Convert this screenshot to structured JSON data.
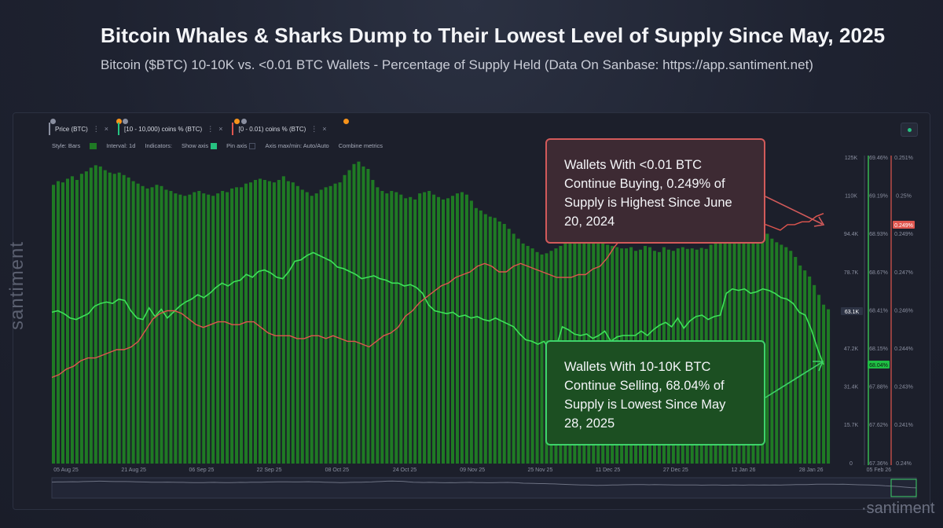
{
  "title": "Bitcoin Whales & Sharks Dump to Their Lowest Level of Supply Since May, 2025",
  "subtitle": "Bitcoin ($BTC) 10-10K vs. <0.01 BTC Wallets - Percentage of Supply Held (Data On Sanbase: https://app.santiment.net)",
  "brand": "santiment",
  "brand_right": "·santiment",
  "metric_tabs": [
    {
      "label": "Price (BTC)",
      "color": "#8a8fa0"
    },
    {
      "label": "[10 - 10,000) coins % (BTC)",
      "color": "#26c281"
    },
    {
      "label": "[0 - 0.01) coins % (BTC)",
      "color": "#e0564f"
    }
  ],
  "toolbar": {
    "style": "Style: Bars",
    "interval": "Interval: 1d",
    "indicators": "Indicators:",
    "show_axis": "Show axis",
    "pin_axis": "Pin axis",
    "axis_minmax": "Axis max/min: Auto/Auto",
    "combine": "Combine metrics"
  },
  "callouts": {
    "red": "Wallets With <0.01 BTC Continue Buying, 0.249% of Supply is Highest Since June 20, 2024",
    "green": "Wallets With 10-10K BTC Continue Selling, 68.04% of Supply is Lowest Since May 28, 2025"
  },
  "colors": {
    "bars": "#1f7a24",
    "whales_line": "#3ee05a",
    "small_line": "#e0564f",
    "accent_red": "#d25a5a",
    "accent_green": "#3ed26a"
  },
  "chart_data": {
    "type": "bar",
    "title": "Bitcoin Whales & Sharks Dump to Their Lowest Level of Supply Since May, 2025",
    "x_ticks": [
      "05 Aug 25",
      "21 Aug 25",
      "06 Sep 25",
      "22 Sep 25",
      "08 Oct 25",
      "24 Oct 25",
      "09 Nov 25",
      "25 Nov 25",
      "11 Dec 25",
      "27 Dec 25",
      "12 Jan 26",
      "28 Jan 26",
      "05 Feb 26"
    ],
    "axes": {
      "price": {
        "ticks": [
          "125K",
          "110K",
          "94.4K",
          "78.7K",
          "63.1K",
          "47.2K",
          "31.4K",
          "15.7K",
          "0"
        ],
        "range": [
          0,
          125000
        ],
        "current_label": "63.1K"
      },
      "whales_pct": {
        "ticks": [
          "69.46%",
          "69.19%",
          "68.93%",
          "68.67%",
          "68.41%",
          "68.15%",
          "67.88%",
          "67.62%",
          "67.36%"
        ],
        "range": [
          67.36,
          69.46
        ],
        "current_label": "68.04%"
      },
      "small_pct": {
        "ticks": [
          "0.251%",
          "0.25%",
          "0.249%",
          "0.247%",
          "0.246%",
          "0.244%",
          "0.243%",
          "0.241%",
          "0.24%"
        ],
        "range": [
          0.24,
          0.251
        ],
        "current_label": "0.249%"
      }
    },
    "series": [
      {
        "name": "Price (BTC)",
        "style": "bars",
        "unit": "USD",
        "values": [
          114000,
          115500,
          115000,
          116500,
          117500,
          116000,
          118500,
          119500,
          121000,
          122000,
          121500,
          120000,
          119000,
          118500,
          119000,
          118000,
          117000,
          115500,
          114500,
          113500,
          112500,
          113000,
          114000,
          113500,
          112000,
          111500,
          110500,
          110000,
          109500,
          110000,
          111000,
          111500,
          110500,
          110000,
          109500,
          110500,
          111500,
          111000,
          112500,
          113000,
          113000,
          114500,
          115000,
          116000,
          116500,
          116000,
          115500,
          115000,
          116000,
          117500,
          115500,
          115000,
          113500,
          112000,
          111000,
          109500,
          110500,
          112000,
          113000,
          113500,
          114500,
          115000,
          118000,
          120000,
          122500,
          123500,
          121500,
          120500,
          116000,
          113000,
          111500,
          110500,
          111500,
          111000,
          110000,
          108500,
          109000,
          108000,
          110500,
          111000,
          111500,
          110000,
          109000,
          108000,
          108500,
          109500,
          110500,
          111000,
          110000,
          107500,
          104500,
          103500,
          102000,
          101000,
          100500,
          99000,
          98000,
          96000,
          94000,
          92000,
          90000,
          89000,
          88000,
          86500,
          85500,
          86000,
          87000,
          88000,
          89000,
          90500,
          91000,
          92000,
          92500,
          91500,
          90500,
          92000,
          91000,
          90000,
          89500,
          89000,
          88500,
          88000,
          88000,
          88500,
          87000,
          87500,
          89000,
          88500,
          87000,
          86500,
          88500,
          87500,
          87000,
          88000,
          88500,
          87800,
          88000,
          87500,
          88200,
          87800,
          89500,
          90500,
          91500,
          91500,
          92500,
          94000,
          95000,
          96000,
          95500,
          95000,
          94500,
          95000,
          94000,
          92000,
          90500,
          89500,
          88500,
          87000,
          84500,
          81000,
          79000,
          76500,
          73000,
          69000,
          65000,
          63100
        ]
      },
      {
        "name": "[10 - 10,000) coins % (BTC)",
        "style": "line",
        "unit": "%",
        "values": [
          68.4,
          68.41,
          68.39,
          68.36,
          68.35,
          68.37,
          68.39,
          68.44,
          68.46,
          68.47,
          68.46,
          68.49,
          68.48,
          68.41,
          68.36,
          68.35,
          68.43,
          68.37,
          68.42,
          68.36,
          68.4,
          68.44,
          68.47,
          68.49,
          68.52,
          68.5,
          68.53,
          68.57,
          68.6,
          68.58,
          68.61,
          68.62,
          68.66,
          68.64,
          68.68,
          68.69,
          68.67,
          68.64,
          68.63,
          68.68,
          68.75,
          68.76,
          68.79,
          68.81,
          68.79,
          68.77,
          68.75,
          68.71,
          68.7,
          68.68,
          68.66,
          68.63,
          68.64,
          68.65,
          68.63,
          68.62,
          68.6,
          68.6,
          68.58,
          68.59,
          68.57,
          68.53,
          68.45,
          68.41,
          68.4,
          68.39,
          68.4,
          68.37,
          68.38,
          68.36,
          68.37,
          68.35,
          68.34,
          68.36,
          68.34,
          68.32,
          68.3,
          68.25,
          68.21,
          68.2,
          68.18,
          68.2,
          68.13,
          68.16,
          68.3,
          68.28,
          68.25,
          68.24,
          68.25,
          68.22,
          68.24,
          68.27,
          68.2,
          68.23,
          68.24,
          68.24,
          68.24,
          68.27,
          68.24,
          68.28,
          68.31,
          68.33,
          68.3,
          68.36,
          68.29,
          68.34,
          68.37,
          68.38,
          68.35,
          68.37,
          68.38,
          68.53,
          68.56,
          68.55,
          68.56,
          68.53,
          68.54,
          68.56,
          68.55,
          68.53,
          68.5,
          68.49,
          68.46,
          68.4,
          68.38,
          68.28,
          68.15,
          68.04
        ]
      },
      {
        "name": "[0 - 0.01) coins % (BTC)",
        "style": "line",
        "unit": "%",
        "values": [
          0.2431,
          0.2432,
          0.2434,
          0.2435,
          0.2437,
          0.2438,
          0.2438,
          0.2439,
          0.244,
          0.2441,
          0.2441,
          0.2442,
          0.2444,
          0.2448,
          0.2452,
          0.2454,
          0.2455,
          0.2455,
          0.2454,
          0.2452,
          0.245,
          0.2449,
          0.245,
          0.2451,
          0.2451,
          0.245,
          0.245,
          0.2451,
          0.2451,
          0.2449,
          0.2447,
          0.2446,
          0.2446,
          0.2446,
          0.2445,
          0.2445,
          0.2446,
          0.2446,
          0.2445,
          0.2446,
          0.2445,
          0.2444,
          0.2444,
          0.2443,
          0.2442,
          0.2444,
          0.2446,
          0.2447,
          0.2449,
          0.2453,
          0.2455,
          0.2458,
          0.246,
          0.2462,
          0.2464,
          0.2465,
          0.2467,
          0.2468,
          0.2469,
          0.2471,
          0.2472,
          0.2471,
          0.2469,
          0.2469,
          0.2471,
          0.2472,
          0.2471,
          0.247,
          0.2469,
          0.2468,
          0.2467,
          0.2467,
          0.2467,
          0.2468,
          0.2468,
          0.247,
          0.2471,
          0.2474,
          0.2478,
          0.2481,
          0.2485,
          0.2486,
          0.2488,
          0.2489,
          0.249,
          0.2491,
          0.2491,
          0.249,
          0.249,
          0.249,
          0.249,
          0.2489,
          0.2487,
          0.2486,
          0.2486,
          0.2487,
          0.2486,
          0.2484,
          0.2485,
          0.2486,
          0.2485,
          0.2484,
          0.2486,
          0.2486,
          0.2487,
          0.2487,
          0.2489,
          0.249
        ]
      }
    ]
  }
}
